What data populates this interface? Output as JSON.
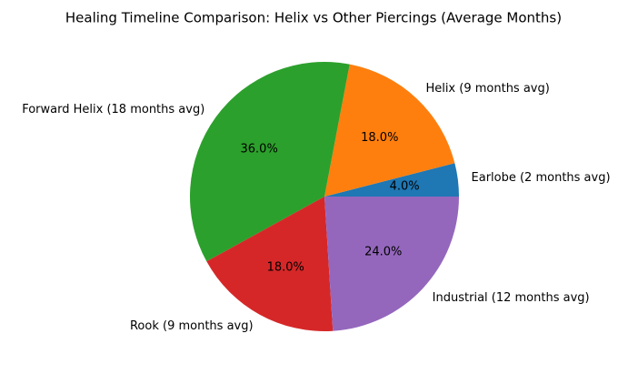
{
  "chart_data": {
    "type": "pie",
    "title": "Healing Timeline Comparison: Helix vs Other Piercings (Average Months)",
    "categories": [
      "Earlobe (2 months avg)",
      "Helix (9 months avg)",
      "Forward Helix (18 months avg)",
      "Rook (9 months avg)",
      "Industrial (12 months avg)"
    ],
    "values": [
      4,
      18,
      36,
      18,
      24
    ],
    "value_labels": [
      "4.0%",
      "18.0%",
      "36.0%",
      "18.0%",
      "24.0%"
    ],
    "colors": [
      "#1f77b4",
      "#ff7f0e",
      "#2ca02c",
      "#d62728",
      "#9467bd"
    ]
  }
}
